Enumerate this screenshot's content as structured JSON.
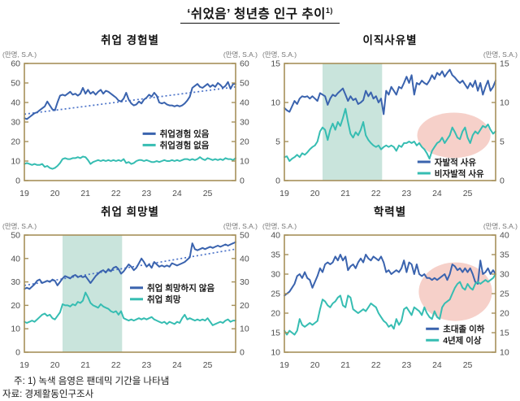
{
  "page": {
    "title": "‘쉬었음’  청년층 인구 추이",
    "title_sup": "1)",
    "note": "주: 1) 녹색 음영은 팬데믹 기간을 나타냄",
    "source": "자료: 경제활동인구조사"
  },
  "colors": {
    "frame": "#a6905a",
    "blue": "#3a63ae",
    "teal": "#36bdb2",
    "trend": "#4a72c8",
    "band": "#c9e4dc",
    "highlight": "#f6d0c9",
    "axis_text": "#4d4d4d",
    "unit_text": "#757575",
    "legend_text": "#1a1a1a"
  },
  "chart_data": [
    {
      "type": "line",
      "title": "취업 경험별",
      "unit_left": "(만명, S.A.)",
      "unit_right": "(만명, S.A.)",
      "x_domain": [
        2019,
        2025.9167
      ],
      "x_tick_vals": [
        2019,
        2020,
        2021,
        2022,
        2023,
        2024,
        2025
      ],
      "x_tick_labels": [
        "19",
        "20",
        "21",
        "22",
        "23",
        "24",
        "25"
      ],
      "ylim": [
        0,
        60
      ],
      "y_ticks": [
        0,
        10,
        20,
        30,
        40,
        50,
        60
      ],
      "trend": [
        34,
        48
      ],
      "legend": {
        "fx": 0.56,
        "fy": 0.6
      },
      "series": [
        {
          "name": "취업경험 있음",
          "color": "blue",
          "values": [
            32,
            31.5,
            32.5,
            33.5,
            34.5,
            35,
            36,
            37,
            38,
            40.5,
            38.5,
            36.5,
            36,
            40,
            43.5,
            44,
            43.5,
            44.5,
            45.5,
            44,
            44.5,
            43.5,
            44.5,
            47.5,
            44.5,
            46.5,
            44.5,
            45.5,
            44,
            45.5,
            46.5,
            44.5,
            46,
            45.5,
            44.5,
            43.5,
            42.5,
            41,
            40.5,
            42,
            45,
            41.5,
            39.5,
            38.5,
            39,
            40.5,
            39.5,
            41.5,
            42.5,
            44,
            43,
            45,
            43.5,
            40,
            39.5,
            40,
            39,
            38.5,
            38.5,
            38,
            38.5,
            38,
            38.5,
            39.5,
            41,
            43,
            47.5,
            48.5,
            49.5,
            48,
            47.5,
            48.5,
            49.5,
            48,
            49,
            48,
            50,
            49,
            47.5,
            48.5,
            50.5,
            47,
            49.5,
            49.5
          ]
        },
        {
          "name": "취업경험 없음",
          "color": "teal",
          "values": [
            8.5,
            9,
            8.5,
            8,
            8.5,
            8,
            8,
            8.5,
            7,
            7.5,
            6.5,
            6,
            6.5,
            7.5,
            9,
            11,
            11.5,
            11,
            11,
            11.5,
            11.5,
            12,
            11.5,
            12.3,
            12,
            10.5,
            8.5,
            9.5,
            10,
            10.5,
            10,
            10.5,
            10,
            10.5,
            10,
            10.5,
            10,
            10.5,
            10,
            11,
            9,
            9.5,
            8.5,
            9,
            10,
            10.5,
            10.5,
            10,
            10.5,
            10,
            9.5,
            9.5,
            10,
            9.5,
            10,
            10.5,
            10,
            10,
            10.5,
            10,
            10.5,
            10,
            10.5,
            11,
            11,
            10.5,
            11,
            10.5,
            11,
            12,
            11,
            10.5,
            11.5,
            11,
            10.5,
            11,
            10.5,
            11,
            10.5,
            11.5,
            11,
            11,
            10.5,
            11.5
          ]
        }
      ]
    },
    {
      "type": "line",
      "title": "이직사유별",
      "unit_left": "(만명, S.A.)",
      "unit_right": "(만명, S.A.)",
      "x_domain": [
        2019,
        2025.9167
      ],
      "x_tick_vals": [
        2019,
        2020,
        2021,
        2022,
        2023,
        2024,
        2025
      ],
      "x_tick_labels": [
        "19",
        "20",
        "21",
        "22",
        "23",
        "24",
        "25"
      ],
      "ylim": [
        0,
        15
      ],
      "y_ticks": [
        0,
        5,
        10,
        15
      ],
      "pandemic_band": [
        2020.25,
        2022.2
      ],
      "highlight_ellipse": {
        "cx": 2024.55,
        "cy": 5.8,
        "rx": 1.2,
        "ry": 2.9
      },
      "legend": {
        "fx": 0.63,
        "fy": 0.84
      },
      "series": [
        {
          "name": "자발적 사유",
          "color": "blue",
          "values": [
            9.3,
            9,
            8.8,
            9.5,
            10.2,
            9.8,
            10.5,
            10.8,
            10.7,
            10.8,
            10.5,
            10.8,
            10.5,
            10.2,
            11.2,
            11,
            10.8,
            9.7,
            10.5,
            11,
            10.8,
            11.2,
            11.5,
            11.8,
            11,
            10.2,
            10.8,
            10.3,
            10.5,
            9.8,
            10,
            10.3,
            11.5,
            10.8,
            11.3,
            10.5,
            10.8,
            10,
            10.5,
            8.5,
            11.5,
            11,
            12,
            11.5,
            11,
            12,
            11.8,
            12.5,
            13.3,
            12.5,
            13.5,
            11,
            12.5,
            12.3,
            12.8,
            12.5,
            12.3,
            12.8,
            13.5,
            13,
            13.8,
            13.5,
            14,
            13.3,
            13.8,
            14.2,
            13.5,
            13.2,
            12.8,
            12.5,
            12.8,
            12.3,
            11.8,
            12.5,
            12,
            12.8,
            11.5,
            12.5,
            11,
            12,
            12.8,
            11.5,
            12,
            12.8
          ]
        },
        {
          "name": "비자발적 사유",
          "color": "teal",
          "values": [
            3,
            3.1,
            2.5,
            2.8,
            3,
            3.3,
            3,
            3.5,
            3.3,
            3.6,
            4,
            4.3,
            4.5,
            5,
            6.3,
            6.8,
            6.5,
            5.2,
            6.5,
            7.3,
            6.5,
            7.5,
            7,
            8,
            9.2,
            7.5,
            6,
            5.5,
            6.2,
            5.8,
            6.5,
            7.5,
            5.8,
            5.2,
            4.8,
            4.5,
            4.3,
            4.5,
            4,
            4.3,
            4.5,
            4.3,
            4.5,
            4.3,
            3.8,
            4.5,
            4.3,
            4.8,
            4.8,
            5,
            4.8,
            5,
            4.5,
            4.8,
            4.3,
            4,
            3.5,
            2.8,
            3.8,
            4.3,
            4.8,
            5,
            5.5,
            4.8,
            5.3,
            5.8,
            6.8,
            6.2,
            5.5,
            5.3,
            6.3,
            6.8,
            5.5,
            4.8,
            5.8,
            6.3,
            6,
            6.5,
            7,
            6.8,
            7.2,
            6.5,
            6,
            6.3
          ]
        }
      ]
    },
    {
      "type": "line",
      "title": "취업 희망별",
      "unit_left": "(만명, S.A.)",
      "unit_right": "(만명, S.A.)",
      "x_domain": [
        2019,
        2025.9167
      ],
      "x_tick_vals": [
        2019,
        2020,
        2021,
        2022,
        2023,
        2024,
        2025
      ],
      "x_tick_labels": [
        "19",
        "20",
        "21",
        "22",
        "23",
        "24",
        "25"
      ],
      "ylim": [
        0,
        50
      ],
      "y_ticks": [
        0,
        10,
        20,
        30,
        40,
        50
      ],
      "trend": [
        28.5,
        44
      ],
      "pandemic_band": [
        2020.25,
        2022.2
      ],
      "legend": {
        "fx": 0.5,
        "fy": 0.45
      },
      "series": [
        {
          "name": "취업 희망하지 않음",
          "color": "blue",
          "values": [
            27,
            27.5,
            27,
            28,
            29,
            30.5,
            31,
            29.5,
            30,
            30.5,
            30,
            31,
            30.5,
            28.5,
            30,
            31.5,
            32.5,
            32,
            31.5,
            32.5,
            33,
            32,
            32.5,
            32,
            32.5,
            31,
            29.5,
            31,
            32.5,
            33.5,
            34.5,
            35,
            34,
            35.5,
            34.5,
            36,
            36.5,
            35.5,
            33.5,
            34.5,
            36,
            37.5,
            36.5,
            35,
            36,
            38,
            40,
            38.5,
            36.5,
            37.5,
            36,
            38.5,
            37.5,
            36.5,
            37,
            36.5,
            37,
            36.5,
            38,
            37.5,
            37,
            37.5,
            38,
            38.5,
            39.5,
            40.5,
            46.5,
            44,
            43.5,
            44,
            44.5,
            44,
            44.5,
            45,
            44.5,
            45,
            45.5,
            45,
            45.5,
            46,
            45.5,
            46,
            46.5,
            47
          ]
        },
        {
          "name": "취업 희망",
          "color": "teal",
          "values": [
            13,
            12.5,
            13,
            13.5,
            13,
            14,
            15,
            16,
            16.5,
            15.5,
            16,
            14.5,
            14,
            15.5,
            17,
            20.5,
            20,
            20,
            19.5,
            20.5,
            20,
            21.5,
            21,
            22,
            25.5,
            23.5,
            21,
            20,
            19.5,
            19,
            20.5,
            19.5,
            19,
            18.5,
            17.5,
            17,
            17.5,
            16,
            17.5,
            14.5,
            14,
            13.5,
            14,
            13.5,
            14,
            14.5,
            14,
            14.5,
            14,
            14.5,
            15,
            14,
            13.5,
            13,
            12.5,
            13,
            12,
            13,
            12.5,
            12,
            13,
            12.5,
            14.5,
            16,
            14,
            14.5,
            14,
            13.5,
            14,
            13.5,
            14,
            13.5,
            14.5,
            13,
            11.5,
            12,
            12.5,
            13,
            12.5,
            13.5,
            14,
            13,
            13.5,
            13.5
          ]
        }
      ]
    },
    {
      "type": "line",
      "title": "학력별",
      "unit_left": "(만명, S.A.)",
      "unit_right": "(만명, S.A.)",
      "x_domain": [
        2019,
        2025.9167
      ],
      "x_tick_vals": [
        2019,
        2020,
        2021,
        2022,
        2023,
        2024,
        2025
      ],
      "x_tick_labels": [
        "19",
        "20",
        "21",
        "22",
        "23",
        "24",
        "25"
      ],
      "ylim": [
        10,
        40
      ],
      "y_ticks": [
        10,
        15,
        20,
        25,
        30,
        35,
        40
      ],
      "highlight_ellipse": {
        "cx": 2024.6,
        "cy": 25.5,
        "rx": 1.2,
        "ry": 7.5
      },
      "legend": {
        "fx": 0.67,
        "fy": 0.8
      },
      "series": [
        {
          "name": "초대졸 이하",
          "color": "blue",
          "values": [
            24.5,
            25,
            25.5,
            26.5,
            27.5,
            29.5,
            30,
            29,
            30.5,
            29,
            28.5,
            26.5,
            28,
            29.5,
            31.5,
            30.5,
            32.5,
            33,
            32.5,
            33,
            34.5,
            33.5,
            35,
            33.5,
            34.5,
            31,
            32,
            32.5,
            31.5,
            33,
            34,
            33,
            35,
            34,
            33.5,
            34.5,
            34,
            33.5,
            34.5,
            33,
            30.5,
            31,
            30,
            30.5,
            31,
            30.5,
            31.5,
            33.5,
            30.5,
            33,
            32.5,
            30,
            32.5,
            30,
            29.5,
            30,
            29,
            29,
            28.5,
            29,
            28.5,
            29,
            29.5,
            30,
            28.5,
            30,
            32.5,
            32,
            31,
            31.5,
            30.5,
            31.5,
            30.5,
            31.5,
            30,
            28,
            27.5,
            33.5,
            30,
            30.5,
            31.5,
            30,
            31,
            30
          ]
        },
        {
          "name": "4년제 이상",
          "color": "teal",
          "values": [
            15.5,
            14.5,
            15.5,
            15,
            14.5,
            15.5,
            18.5,
            17,
            16.5,
            17,
            17.5,
            17,
            17.5,
            18,
            21,
            23.5,
            23,
            22,
            21.5,
            22.5,
            23,
            24,
            24.5,
            22,
            21.5,
            24.5,
            24,
            21,
            20.5,
            20,
            20.5,
            21,
            20.5,
            21.5,
            22.5,
            22,
            21.5,
            20,
            19,
            18,
            17.5,
            16.5,
            17,
            16,
            18.5,
            17,
            18,
            21,
            21.5,
            20.5,
            19.5,
            21.5,
            21,
            20.5,
            19.5,
            21.5,
            20,
            19,
            18.5,
            20.5,
            19,
            18.5,
            21.5,
            22.5,
            23,
            23.5,
            25,
            26.5,
            27.5,
            28,
            26.5,
            26,
            27.5,
            26.5,
            26,
            27.5,
            28,
            27.5,
            28,
            28.5,
            28,
            28.5,
            29,
            30
          ]
        }
      ]
    }
  ]
}
